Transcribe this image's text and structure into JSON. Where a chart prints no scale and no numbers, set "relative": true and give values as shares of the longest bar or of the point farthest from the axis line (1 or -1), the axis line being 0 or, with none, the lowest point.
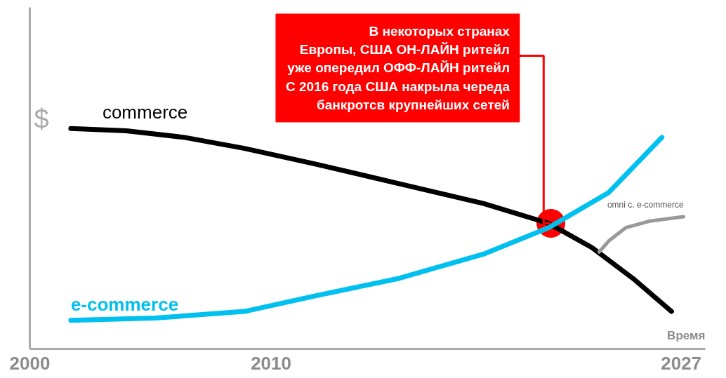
{
  "chart_data": {
    "type": "line",
    "relative": true,
    "xlabel": "Время",
    "ylabel": "$",
    "xlim": [
      2000,
      2028
    ],
    "xticks": [
      2000,
      2010,
      2027
    ],
    "grid": false,
    "legend": false,
    "marker": "none",
    "line_style": "solid",
    "series": [
      {
        "name": "commerce",
        "color": "#000000",
        "x": [
          2001.7,
          2004.0,
          2006.4,
          2008.9,
          2011.8,
          2015.3,
          2018.8,
          2021.5,
          2023.3,
          2025.0,
          2026.6
        ],
        "values": [
          1.0,
          0.99,
          0.96,
          0.91,
          0.84,
          0.75,
          0.66,
          0.57,
          0.46,
          0.32,
          0.17
        ]
      },
      {
        "name": "e-commerce",
        "color": "#00c0f0",
        "x": [
          2001.7,
          2005.2,
          2008.9,
          2011.8,
          2015.3,
          2018.8,
          2021.5,
          2024.0,
          2026.2
        ],
        "values": [
          0.13,
          0.14,
          0.17,
          0.24,
          0.32,
          0.43,
          0.55,
          0.71,
          0.96
        ]
      },
      {
        "name": "omni c. e-commerce",
        "color": "#999999",
        "x": [
          2023.6,
          2024.0,
          2024.7,
          2025.7,
          2027.1
        ],
        "values": [
          0.44,
          0.49,
          0.55,
          0.58,
          0.6
        ]
      }
    ],
    "annotations": [
      {
        "text": "В некоторых странах\nЕвропы, США ОН-ЛАЙН ритейл\nуже опередил ОФФ-ЛАЙН ритейл\nС 2016 года США накрыла череда\nбанкротсв крупнейших сетей",
        "x": 2021.6,
        "y": 0.57
      }
    ]
  }
}
